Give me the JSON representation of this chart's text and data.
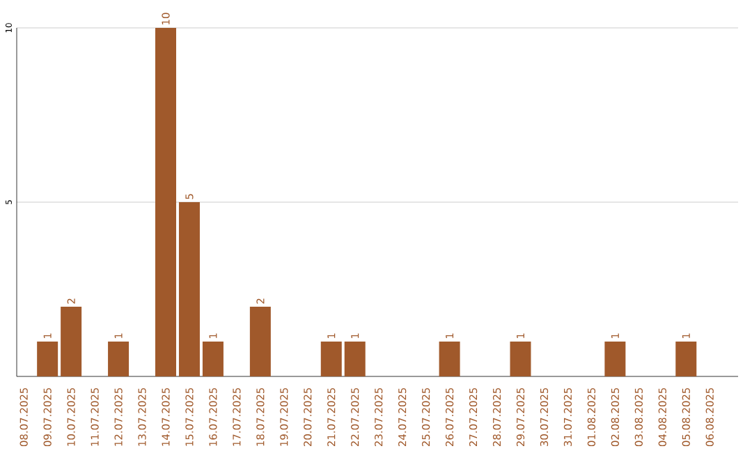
{
  "chart_data": {
    "type": "bar",
    "color": "#a0592b",
    "categories": [
      "08.07.2025",
      "09.07.2025",
      "10.07.2025",
      "11.07.2025",
      "12.07.2025",
      "13.07.2025",
      "14.07.2025",
      "15.07.2025",
      "16.07.2025",
      "17.07.2025",
      "18.07.2025",
      "19.07.2025",
      "20.07.2025",
      "21.07.2025",
      "22.07.2025",
      "23.07.2025",
      "24.07.2025",
      "25.07.2025",
      "26.07.2025",
      "27.07.2025",
      "28.07.2025",
      "29.07.2025",
      "30.07.2025",
      "31.07.2025",
      "01.08.2025",
      "02.08.2025",
      "03.08.2025",
      "04.08.2025",
      "05.08.2025",
      "06.08.2025"
    ],
    "values": [
      0,
      1,
      2,
      0,
      1,
      0,
      10,
      5,
      1,
      0,
      2,
      0,
      0,
      1,
      1,
      0,
      0,
      0,
      1,
      0,
      0,
      1,
      0,
      0,
      0,
      1,
      0,
      0,
      1,
      0
    ],
    "value_labels": [
      null,
      "1",
      "2",
      null,
      "1",
      null,
      "10",
      "5",
      "1",
      null,
      "2",
      null,
      null,
      "1",
      "1",
      null,
      null,
      null,
      "1",
      null,
      null,
      "1",
      null,
      null,
      null,
      "1",
      null,
      null,
      "1",
      null
    ],
    "ylim": [
      0,
      10
    ],
    "yticks": [
      5,
      10
    ],
    "grid": "y"
  }
}
